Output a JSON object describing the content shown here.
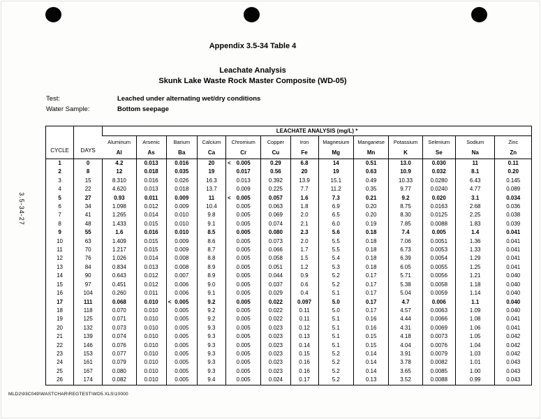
{
  "page": {
    "side_label": "3.5-34-27",
    "footer_path": "MLD2\\93C049\\WASTCHAR\\REGTEST\\WD5.XLS\\10000"
  },
  "header": {
    "appendix": "Appendix 3.5-34 Table 4",
    "title": "Leachate Analysis",
    "subtitle": "Skunk Lake Waste Rock Master Composite (WD-05)"
  },
  "meta": {
    "test_label": "Test:",
    "test_value": "Leached under alternating wet/dry conditions",
    "sample_label": "Water Sample:",
    "sample_value": "Bottom seepage"
  },
  "table": {
    "group_header": "LEACHATE ANALYSIS (mg/L) *",
    "cycle_header": "CYCLE",
    "days_header": "DAYS",
    "columns": [
      {
        "name": "Aluminum",
        "symbol": "Al"
      },
      {
        "name": "Arsenic",
        "symbol": "As"
      },
      {
        "name": "Barium",
        "symbol": "Ba"
      },
      {
        "name": "Calcium",
        "symbol": "Ca"
      },
      {
        "name": "Chromium",
        "symbol": "Cr"
      },
      {
        "name": "Copper",
        "symbol": "Cu"
      },
      {
        "name": "Iron",
        "symbol": "Fe"
      },
      {
        "name": "Magnesium",
        "symbol": "Mg"
      },
      {
        "name": "Manganese",
        "symbol": "Mn"
      },
      {
        "name": "Potassium",
        "symbol": "K"
      },
      {
        "name": "Selenium",
        "symbol": "Se"
      },
      {
        "name": "Sodium",
        "symbol": "Na"
      },
      {
        "name": "Zinc",
        "symbol": "Zn"
      }
    ],
    "rows": [
      {
        "cycle": "1",
        "days": "0",
        "bold": true,
        "values": [
          "4.2",
          "0.013",
          "0.016",
          "20",
          "< 0.005",
          "0.29",
          "6.8",
          "14",
          "0.51",
          "13.0",
          "0.030",
          "11",
          "0.11"
        ]
      },
      {
        "cycle": "2",
        "days": "8",
        "bold": true,
        "values": [
          "12",
          "0.018",
          "0.035",
          "19",
          "0.017",
          "0.56",
          "20",
          "19",
          "0.63",
          "10.9",
          "0.032",
          "8.1",
          "0.20"
        ]
      },
      {
        "cycle": "3",
        "days": "15",
        "bold": false,
        "values": [
          "8.310",
          "0.016",
          "0.026",
          "16.3",
          "0.013",
          "0.392",
          "13.9",
          "15.1",
          "0.49",
          "10.33",
          "0.0280",
          "6.43",
          "0.145"
        ]
      },
      {
        "cycle": "4",
        "days": "22",
        "bold": false,
        "values": [
          "4.620",
          "0.013",
          "0.018",
          "13.7",
          "0.009",
          "0.225",
          "7.7",
          "11.2",
          "0.35",
          "9.77",
          "0.0240",
          "4.77",
          "0.089"
        ]
      },
      {
        "cycle": "5",
        "days": "27",
        "bold": true,
        "values": [
          "0.93",
          "0.011",
          "0.009",
          "11",
          "< 0.005",
          "0.057",
          "1.6",
          "7.3",
          "0.21",
          "9.2",
          "0.020",
          "3.1",
          "0.034"
        ]
      },
      {
        "cycle": "6",
        "days": "34",
        "bold": false,
        "values": [
          "1.098",
          "0.012",
          "0.009",
          "10.4",
          "0.005",
          "0.063",
          "1.8",
          "6.9",
          "0.20",
          "8.75",
          "0.0163",
          "2.68",
          "0.036"
        ]
      },
      {
        "cycle": "7",
        "days": "41",
        "bold": false,
        "values": [
          "1.265",
          "0.014",
          "0.010",
          "9.8",
          "0.005",
          "0.069",
          "2.0",
          "6.5",
          "0.20",
          "8.30",
          "0.0125",
          "2.25",
          "0.038"
        ]
      },
      {
        "cycle": "8",
        "days": "48",
        "bold": false,
        "values": [
          "1.433",
          "0.015",
          "0.010",
          "9.1",
          "0.005",
          "0.074",
          "2.1",
          "6.0",
          "0.19",
          "7.85",
          "0.0088",
          "1.83",
          "0.039"
        ]
      },
      {
        "cycle": "9",
        "days": "55",
        "bold": true,
        "values": [
          "1.6",
          "0.016",
          "0.010",
          "8.5",
          "0.005",
          "0.080",
          "2.3",
          "5.6",
          "0.18",
          "7.4",
          "0.005",
          "1.4",
          "0.041"
        ]
      },
      {
        "cycle": "10",
        "days": "63",
        "bold": false,
        "values": [
          "1.409",
          "0.015",
          "0.009",
          "8.6",
          "0.005",
          "0.073",
          "2.0",
          "5.5",
          "0.18",
          "7.06",
          "0.0051",
          "1.36",
          "0.041"
        ]
      },
      {
        "cycle": "11",
        "days": "70",
        "bold": false,
        "values": [
          "1.217",
          "0.015",
          "0.009",
          "8.7",
          "0.005",
          "0.066",
          "1.7",
          "5.5",
          "0.18",
          "6.73",
          "0.0053",
          "1.33",
          "0.041"
        ]
      },
      {
        "cycle": "12",
        "days": "76",
        "bold": false,
        "values": [
          "1.026",
          "0.014",
          "0.008",
          "8.8",
          "0.005",
          "0.058",
          "1.5",
          "5.4",
          "0.18",
          "6.39",
          "0.0054",
          "1.29",
          "0.041"
        ]
      },
      {
        "cycle": "13",
        "days": "84",
        "bold": false,
        "values": [
          "0.834",
          "0.013",
          "0.008",
          "8.9",
          "0.005",
          "0.051",
          "1.2",
          "5.3",
          "0.18",
          "6.05",
          "0.0055",
          "1.25",
          "0.041"
        ]
      },
      {
        "cycle": "14",
        "days": "90",
        "bold": false,
        "values": [
          "0.643",
          "0.012",
          "0.007",
          "8.9",
          "0.005",
          "0.044",
          "0.9",
          "5.2",
          "0.17",
          "5.71",
          "0.0056",
          "1.21",
          "0.040"
        ]
      },
      {
        "cycle": "15",
        "days": "97",
        "bold": false,
        "values": [
          "0.451",
          "0.012",
          "0.006",
          "9.0",
          "0.005",
          "0.037",
          "0.6",
          "5.2",
          "0.17",
          "5.38",
          "0.0058",
          "1.18",
          "0.040"
        ]
      },
      {
        "cycle": "16",
        "days": "104",
        "bold": false,
        "values": [
          "0.260",
          "0.011",
          "0.006",
          "9.1",
          "0.005",
          "0.029",
          "0.4",
          "5.1",
          "0.17",
          "5.04",
          "0.0059",
          "1.14",
          "0.040"
        ]
      },
      {
        "cycle": "17",
        "days": "111",
        "bold": true,
        "values": [
          "0.068",
          "0.010",
          "< 0.005",
          "9.2",
          "0.005",
          "0.022",
          "0.097",
          "5.0",
          "0.17",
          "4.7",
          "0.006",
          "1.1",
          "0.040"
        ]
      },
      {
        "cycle": "18",
        "days": "118",
        "bold": false,
        "values": [
          "0.070",
          "0.010",
          "0.005",
          "9.2",
          "0.005",
          "0.022",
          "0.11",
          "5.0",
          "0.17",
          "4.57",
          "0.0063",
          "1.09",
          "0.040"
        ]
      },
      {
        "cycle": "19",
        "days": "125",
        "bold": false,
        "values": [
          "0.071",
          "0.010",
          "0.005",
          "9.2",
          "0.005",
          "0.022",
          "0.11",
          "5.1",
          "0.16",
          "4.44",
          "0.0066",
          "1.08",
          "0.041"
        ]
      },
      {
        "cycle": "20",
        "days": "132",
        "bold": false,
        "values": [
          "0.073",
          "0.010",
          "0.005",
          "9.3",
          "0.005",
          "0.023",
          "0.12",
          "5.1",
          "0.16",
          "4.31",
          "0.0069",
          "1.06",
          "0.041"
        ]
      },
      {
        "cycle": "21",
        "days": "139",
        "bold": false,
        "values": [
          "0.074",
          "0.010",
          "0.005",
          "9.3",
          "0.005",
          "0.023",
          "0.13",
          "5.1",
          "0.15",
          "4.18",
          "0.0073",
          "1.05",
          "0.042"
        ]
      },
      {
        "cycle": "22",
        "days": "146",
        "bold": false,
        "values": [
          "0.076",
          "0.010",
          "0.005",
          "9.3",
          "0.005",
          "0.023",
          "0.14",
          "5.1",
          "0.15",
          "4.04",
          "0.0076",
          "1.04",
          "0.042"
        ]
      },
      {
        "cycle": "23",
        "days": "153",
        "bold": false,
        "values": [
          "0.077",
          "0.010",
          "0.005",
          "9.3",
          "0.005",
          "0.023",
          "0.15",
          "5.2",
          "0.14",
          "3.91",
          "0.0079",
          "1.03",
          "0.042"
        ]
      },
      {
        "cycle": "24",
        "days": "161",
        "bold": false,
        "values": [
          "0.079",
          "0.010",
          "0.005",
          "9.3",
          "0.005",
          "0.023",
          "0.16",
          "5.2",
          "0.14",
          "3.78",
          "0.0082",
          "1.01",
          "0.043"
        ]
      },
      {
        "cycle": "25",
        "days": "167",
        "bold": false,
        "values": [
          "0.080",
          "0.010",
          "0.005",
          "9.3",
          "0.005",
          "0.023",
          "0.16",
          "5.2",
          "0.14",
          "3.65",
          "0.0085",
          "1.00",
          "0.043"
        ]
      },
      {
        "cycle": "26",
        "days": "174",
        "bold": false,
        "values": [
          "0.082",
          "0.010",
          "0.005",
          "9.4",
          "0.005",
          "0.024",
          "0.17",
          "5.2",
          "0.13",
          "3.52",
          "0.0088",
          "0.99",
          "0.043"
        ]
      }
    ]
  }
}
